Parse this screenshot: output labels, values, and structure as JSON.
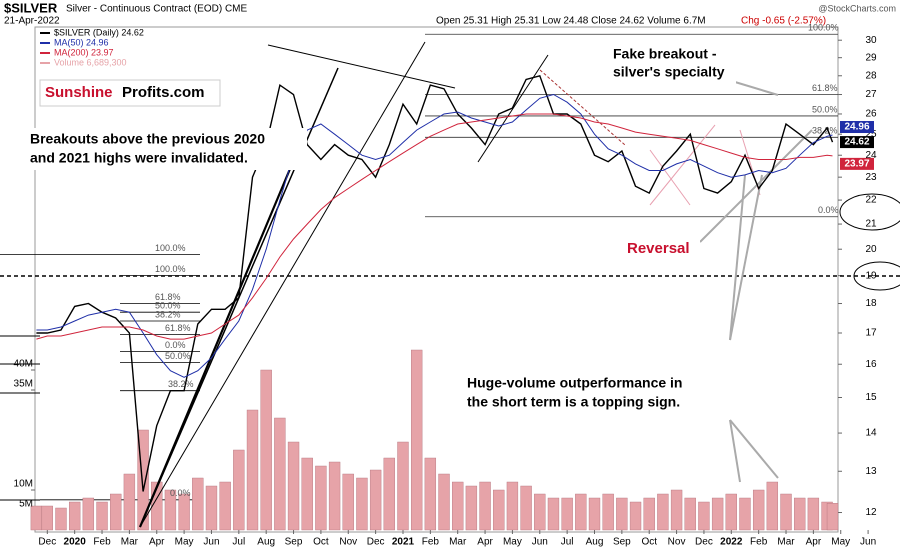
{
  "chart_data": {
    "type": "line",
    "title": "$SILVER",
    "subtitle": "Silver - Continuous Contract (EOD) CME",
    "date": "21-Apr-2022",
    "quote": "Open 25.31 High 25.31 Low 24.48 Close 24.62 Volume 6.7M",
    "change": "Chg -0.65 (-2.57%)",
    "watermark": "@StockCharts.com",
    "logo": [
      "Sunshine",
      "Profits.com"
    ],
    "annotations": {
      "breakouts": [
        "Breakouts above the previous 2020",
        "and 2021 highs were invalidated."
      ],
      "fake": [
        "Fake breakout -",
        "silver's specialty"
      ],
      "reversal": "Reversal",
      "volume_note": [
        "Huge-volume outperformance in",
        "the short term is a topping sign."
      ]
    },
    "log_scale": true,
    "xlim": [
      -0.45,
      28.9
    ],
    "xticks": [
      {
        "value": 0,
        "label": "Dec"
      },
      {
        "value": 1,
        "label": "2020"
      },
      {
        "value": 2,
        "label": "Feb"
      },
      {
        "value": 3,
        "label": "Mar"
      },
      {
        "value": 4,
        "label": "Apr"
      },
      {
        "value": 5,
        "label": "May"
      },
      {
        "value": 6,
        "label": "Jun"
      },
      {
        "value": 7,
        "label": "Jul"
      },
      {
        "value": 8,
        "label": "Aug"
      },
      {
        "value": 9,
        "label": "Sep"
      },
      {
        "value": 10,
        "label": "Oct"
      },
      {
        "value": 11,
        "label": "Nov"
      },
      {
        "value": 12,
        "label": "Dec"
      },
      {
        "value": 13,
        "label": "2021"
      },
      {
        "value": 14,
        "label": "Feb"
      },
      {
        "value": 15,
        "label": "Mar"
      },
      {
        "value": 16,
        "label": "Apr"
      },
      {
        "value": 17,
        "label": "May"
      },
      {
        "value": 18,
        "label": "Jun"
      },
      {
        "value": 19,
        "label": "Jul"
      },
      {
        "value": 20,
        "label": "Aug"
      },
      {
        "value": 21,
        "label": "Sep"
      },
      {
        "value": 22,
        "label": "Oct"
      },
      {
        "value": 23,
        "label": "Nov"
      },
      {
        "value": 24,
        "label": "Dec"
      },
      {
        "value": 25,
        "label": "2022"
      },
      {
        "value": 26,
        "label": "Feb"
      },
      {
        "value": 27,
        "label": "Mar"
      },
      {
        "value": 28,
        "label": "Apr"
      },
      {
        "value": 29,
        "label": "May"
      },
      {
        "value": 30,
        "label": "Jun"
      }
    ],
    "ylim": [
      11.6,
      30.6
    ],
    "yticks": [
      12,
      13,
      14,
      15,
      16,
      17,
      18,
      19,
      20,
      21,
      22,
      23,
      24,
      25,
      26,
      27,
      28,
      29,
      30
    ],
    "y2lim": [
      0,
      125000000
    ],
    "y2ticks": [
      {
        "value": 5000000,
        "label": "5M"
      },
      {
        "value": 10000000,
        "label": "10M"
      },
      {
        "value": 35000000,
        "label": "35M"
      },
      {
        "value": 40000000,
        "label": "40M"
      }
    ],
    "x": [
      -0.4,
      0,
      0.5,
      1,
      1.5,
      2,
      2.5,
      3,
      3.5,
      4,
      4.5,
      5,
      5.5,
      6,
      6.5,
      7,
      7.5,
      8,
      8.5,
      9,
      9.5,
      10,
      10.5,
      11,
      11.5,
      12,
      12.5,
      13,
      13.5,
      14,
      14.5,
      15,
      15.5,
      16,
      16.5,
      17,
      17.5,
      18,
      18.5,
      19,
      19.5,
      20,
      20.5,
      21,
      21.5,
      22,
      22.5,
      23,
      23.5,
      24,
      24.5,
      25,
      25.5,
      26,
      26.5,
      27,
      27.5,
      28,
      28.5,
      28.7
    ],
    "series": [
      {
        "name": "$SILVER (Daily) 24.62",
        "color": "#000000",
        "values": [
          17.0,
          17.0,
          17.1,
          17.9,
          18.0,
          17.7,
          17.5,
          17.0,
          12.5,
          14.2,
          15.2,
          15.2,
          17.3,
          17.8,
          17.8,
          18.2,
          23.0,
          24.5,
          27.5,
          27.0,
          24.5,
          23.8,
          24.5,
          24.0,
          23.8,
          23.0,
          24.5,
          26.5,
          25.5,
          27.5,
          27.3,
          26.0,
          25.3,
          24.5,
          26.0,
          26.3,
          27.8,
          28.0,
          26.0,
          26.0,
          25.5,
          24.0,
          23.7,
          24.2,
          22.6,
          22.3,
          23.5,
          24.2,
          25.0,
          22.5,
          22.3,
          22.8,
          24.0,
          22.5,
          23.3,
          25.5,
          25.0,
          24.5,
          25.3,
          24.62
        ]
      },
      {
        "name": "MA(50) 24.96",
        "color": "#1f2fa8",
        "values": [
          17.1,
          17.1,
          17.2,
          17.4,
          17.6,
          17.7,
          17.8,
          17.7,
          17.0,
          16.3,
          15.8,
          15.6,
          15.8,
          16.2,
          16.8,
          17.4,
          18.5,
          20.0,
          22.0,
          24.0,
          25.2,
          25.5,
          25.0,
          24.5,
          24.0,
          23.8,
          24.0,
          24.6,
          25.2,
          25.6,
          26.0,
          26.1,
          25.8,
          25.6,
          25.4,
          25.6,
          26.2,
          26.8,
          27.0,
          26.6,
          26.0,
          25.0,
          24.3,
          24.0,
          23.6,
          23.3,
          23.3,
          23.6,
          23.8,
          23.5,
          23.2,
          23.0,
          23.1,
          23.3,
          23.2,
          23.4,
          24.0,
          24.6,
          24.9,
          24.96
        ]
      },
      {
        "name": "MA(200) 23.97",
        "color": "#d0243c",
        "values": [
          16.8,
          16.9,
          16.9,
          17.0,
          17.1,
          17.2,
          17.2,
          17.2,
          17.1,
          16.9,
          16.8,
          16.8,
          16.9,
          17.0,
          17.3,
          17.6,
          18.2,
          18.9,
          19.7,
          20.4,
          21.0,
          21.6,
          22.1,
          22.5,
          22.9,
          23.3,
          23.7,
          24.1,
          24.5,
          24.9,
          25.2,
          25.5,
          25.6,
          25.7,
          25.8,
          25.9,
          26.0,
          26.0,
          26.0,
          25.9,
          25.8,
          25.6,
          25.5,
          25.3,
          25.1,
          25.0,
          24.9,
          24.8,
          24.7,
          24.5,
          24.3,
          24.1,
          23.9,
          23.8,
          23.8,
          23.8,
          23.9,
          23.9,
          24.0,
          23.97
        ]
      },
      {
        "name": "Volume 6,689,300",
        "color": "#e6a3a8",
        "axis": "y2",
        "values": [
          6000000,
          6000000,
          5500000,
          7000000,
          8000000,
          7000000,
          9000000,
          14000000,
          25000000,
          12000000,
          10000000,
          9000000,
          13000000,
          11000000,
          12000000,
          20000000,
          30000000,
          40000000,
          28000000,
          22000000,
          18000000,
          16000000,
          17000000,
          14000000,
          13000000,
          15000000,
          18000000,
          22000000,
          45000000,
          18000000,
          14000000,
          12000000,
          11000000,
          12000000,
          10000000,
          12000000,
          11000000,
          9000000,
          8000000,
          8000000,
          9000000,
          8000000,
          9000000,
          8000000,
          7000000,
          8000000,
          9000000,
          10000000,
          8000000,
          7000000,
          8000000,
          9000000,
          8000000,
          10000000,
          12000000,
          9000000,
          8000000,
          8000000,
          7000000,
          6689300
        ]
      }
    ],
    "fib_levels": [
      {
        "label": "100.0%",
        "value": 19.8
      },
      {
        "label": "100.0%",
        "value": 19.0
      },
      {
        "label": "61.8%",
        "value": 18.0
      },
      {
        "label": "50.0%",
        "value": 17.7
      },
      {
        "label": "38.2%",
        "value": 17.4
      },
      {
        "label": "61.8%",
        "value": 16.95
      },
      {
        "label": "0.0%",
        "value": 16.4
      },
      {
        "label": "50.0%",
        "value": 16.05
      },
      {
        "label": "38.2%",
        "value": 15.2
      },
      {
        "label": "0.0%",
        "value": 12.3
      },
      {
        "label": "100.0%",
        "value": 30.35
      },
      {
        "label": "61.8%",
        "value": 27.0
      },
      {
        "label": "50.0%",
        "value": 25.9
      },
      {
        "label": "38.2%",
        "value": 24.85
      },
      {
        "label": "0.0%",
        "value": 21.3
      }
    ]
  }
}
